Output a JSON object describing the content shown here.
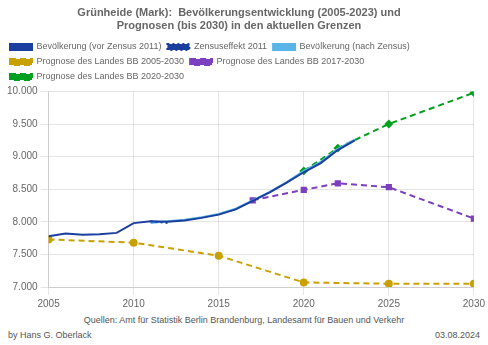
{
  "chart_data": {
    "type": "line",
    "title": "Grünheide (Mark):  Bevölkerungsentwicklung (2005-2023) und\nPrognosen (bis 2030) in den aktuellen Grenzen",
    "annotations": [
      "by Hans G. Oberlack",
      "Quellen: Amt für Statistik Berlin Brandenburg, Landesamt für Bauen und Verkehr",
      "03.08.2024"
    ],
    "xlim": [
      2005,
      2030
    ],
    "xticks": [
      2005,
      2010,
      2015,
      2020,
      2025,
      2030
    ],
    "ylim": [
      7000,
      10000
    ],
    "yticks": [
      {
        "value": 7000,
        "label": "7.000"
      },
      {
        "value": 7500,
        "label": "7.500"
      },
      {
        "value": 8000,
        "label": "8.000"
      },
      {
        "value": 8500,
        "label": "8.500"
      },
      {
        "value": 9000,
        "label": "9.000"
      },
      {
        "value": 9500,
        "label": "9.500"
      },
      {
        "value": 10000,
        "label": "10.000"
      }
    ],
    "grid": true,
    "legend": "upper left",
    "series": [
      {
        "name": "Bevölkerung (vor Zensus 2011)",
        "color": "#1a3f9e",
        "line_style": "solid",
        "x": [
          2005,
          2006,
          2007,
          2008,
          2009,
          2010,
          2011,
          2012,
          2013,
          2014,
          2015,
          2016,
          2017,
          2018,
          2019,
          2020,
          2021,
          2022,
          2023
        ],
        "values": [
          7780,
          7820,
          7800,
          7810,
          7830,
          7980,
          8010,
          8000,
          8020,
          8060,
          8110,
          8190,
          8320,
          8450,
          8600,
          8760,
          8900,
          9100,
          9250
        ]
      },
      {
        "name": "Zensuseffekt 2011",
        "color": "#1a3f9e",
        "line_style": "dotted",
        "x": [
          2011,
          2012
        ],
        "values": [
          8010,
          7980
        ]
      },
      {
        "name": "Bevölkerung (nach Zensus)",
        "color": "#5ab4e8",
        "line_style": "solid",
        "x": [
          2011,
          2012,
          2013,
          2014,
          2015,
          2016,
          2017,
          2018,
          2019,
          2020,
          2021,
          2022,
          2023
        ],
        "values": [
          7980,
          8010,
          8030,
          8070,
          8120,
          8200,
          8330,
          8460,
          8610,
          8780,
          8920,
          9120,
          9260
        ]
      },
      {
        "name": "Prognose des Landes BB 2005-2030",
        "color": "#c8a000",
        "line_style": "dashed",
        "marker": "circle",
        "x": [
          2005,
          2010,
          2015,
          2020,
          2025,
          2030
        ],
        "values": [
          7730,
          7680,
          7480,
          7070,
          7050,
          7050
        ]
      },
      {
        "name": "Prognose des Landes BB 2017-2030",
        "color": "#7b3fbf",
        "line_style": "dashed",
        "marker": "square",
        "x": [
          2017,
          2020,
          2022,
          2025,
          2030
        ],
        "values": [
          8330,
          8490,
          8590,
          8530,
          8050
        ]
      },
      {
        "name": "Prognose des Landes BB 2020-2030",
        "color": "#00a020",
        "line_style": "dashed",
        "marker": "diamond",
        "x": [
          2020,
          2022,
          2025,
          2030
        ],
        "values": [
          8780,
          9130,
          9500,
          9980
        ]
      }
    ]
  }
}
